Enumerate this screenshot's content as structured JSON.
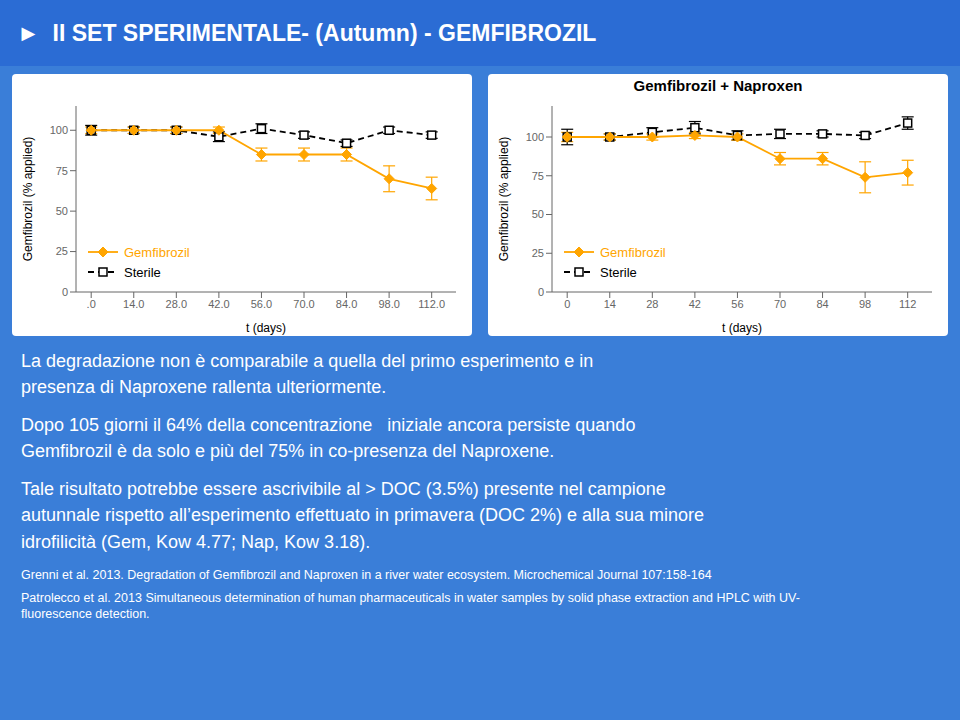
{
  "title": "►  II SET SPERIMENTALE- (Autumn) - GEMFIBROZIL",
  "annotations": [
    "La degradazione non è comparabile a quella del primo esperimento e in\npresenza di Naproxene rallenta ulteriormente.",
    "Dopo 105 giorni il 64% della concentrazione   iniziale ancora persiste quando\nGemfibrozil è da solo e più del 75% in co-presenza del Naproxene.",
    "Tale risultato potrebbe essere ascrivibile al > DOC (3.5%) presente nel campione\nautunnale rispetto all’esperimento effettuato in primavera (DOC 2%) e alla sua minore\nidrofilicità (Gem, Kow 4.77; Nap, Kow 3.18).",
    "Grenni et al. 2013. Degradation of Gemfibrozil and Naproxen in a river water ecosystem. Microchemical Journal 107:158-164",
    "Patrolecco et al. 2013 Simultaneous determination of human pharmaceuticals in water samples by solid phase extraction and HPLC with UV-\nfluorescence detection."
  ],
  "chart_data": [
    {
      "type": "line",
      "xlabel": "t (days)",
      "ylabel": "Gemfibrozil (% applied)",
      "x": [
        0,
        14,
        28,
        42,
        56,
        70,
        84,
        98,
        112
      ],
      "xlim": [
        -5,
        120
      ],
      "ylim": [
        0,
        115
      ],
      "xticks": [
        {
          "value": 0,
          "label": ".0"
        },
        {
          "value": 14.0,
          "label": "14.0"
        },
        {
          "value": 28.0,
          "label": "28.0"
        },
        {
          "value": 42.0,
          "label": "42.0"
        },
        {
          "value": 56.0,
          "label": "56.0"
        },
        {
          "value": 70.0,
          "label": "70.0"
        },
        {
          "value": 84.0,
          "label": "84.0"
        },
        {
          "value": 98.0,
          "label": "98.0"
        },
        {
          "value": 112.0,
          "label": "112.0"
        }
      ],
      "yticks": [
        0,
        25,
        50,
        75,
        100
      ],
      "grid": false,
      "legend": "lower left",
      "series": [
        {
          "name": "Gemfibrozil",
          "color": "#FFA500",
          "marker": "diamond",
          "line_style": "solid",
          "values": [
            100,
            100,
            100,
            100,
            85,
            85,
            85,
            70,
            64
          ],
          "yerr": [
            2,
            2,
            2,
            2,
            4,
            4,
            4,
            8,
            7
          ]
        },
        {
          "name": "Sterile",
          "color": "#000000",
          "marker": "square",
          "line_style": "dashed",
          "values": [
            100,
            100,
            100,
            96,
            101,
            97,
            92,
            100,
            97
          ],
          "yerr": [
            3,
            2,
            2,
            3,
            3,
            2,
            2,
            2,
            2
          ]
        }
      ]
    },
    {
      "type": "line",
      "title": "Gemfibrozil + Naproxen",
      "xlabel": "t (days)",
      "ylabel": "Gemfibrozil (% applied)",
      "x": [
        0,
        14,
        28,
        42,
        56,
        70,
        84,
        98,
        112
      ],
      "xlim": [
        -5,
        120
      ],
      "ylim": [
        0,
        120
      ],
      "xticks": [
        0,
        14,
        28,
        42,
        56,
        70,
        84,
        98,
        112
      ],
      "yticks": [
        0,
        25,
        50,
        75,
        100
      ],
      "grid": false,
      "legend": "lower left",
      "series": [
        {
          "name": "Gemfibrozil",
          "color": "#FFA500",
          "marker": "diamond",
          "line_style": "solid",
          "values": [
            100,
            100,
            100,
            101,
            100,
            86,
            86,
            74,
            77
          ],
          "yerr": [
            3,
            2,
            2,
            2,
            2,
            4,
            4,
            10,
            8
          ]
        },
        {
          "name": "Sterile",
          "color": "#000000",
          "marker": "square",
          "line_style": "dashed",
          "values": [
            100,
            100,
            103,
            106,
            101,
            102,
            102,
            101,
            109
          ],
          "yerr": [
            5,
            2,
            3,
            4,
            3,
            3,
            2,
            2,
            4
          ]
        }
      ]
    }
  ]
}
